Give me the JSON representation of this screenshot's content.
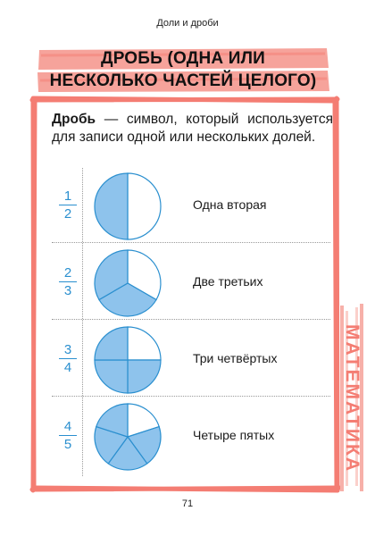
{
  "header": {
    "running_head": "Доли и дроби"
  },
  "title": {
    "line1": "ДРОБЬ (ОДНА ИЛИ",
    "line2": "НЕСКОЛЬКО ЧАСТЕЙ ЦЕЛОГО)"
  },
  "definition": {
    "term": "Дробь",
    "text": " — символ, который используется для записи одной или нескольких долей."
  },
  "fractions": [
    {
      "numerator": "1",
      "denominator": "2",
      "name": "Одна вторая",
      "parts": 2,
      "shaded": 1
    },
    {
      "numerator": "2",
      "denominator": "3",
      "name": "Две третьих",
      "parts": 3,
      "shaded": 2
    },
    {
      "numerator": "3",
      "denominator": "4",
      "name": "Три четвёртых",
      "parts": 4,
      "shaded": 3
    },
    {
      "numerator": "4",
      "denominator": "5",
      "name": "Четыре пятых",
      "parts": 5,
      "shaded": 4
    }
  ],
  "side_tab": {
    "label": "МАТЕМАТИКА"
  },
  "footer": {
    "page_number": "71"
  },
  "colors": {
    "accent": "#f47d73",
    "fraction_blue": "#2a8fcf",
    "pie_fill": "#8ec3ec",
    "pie_stroke": "#2a8fcf"
  }
}
